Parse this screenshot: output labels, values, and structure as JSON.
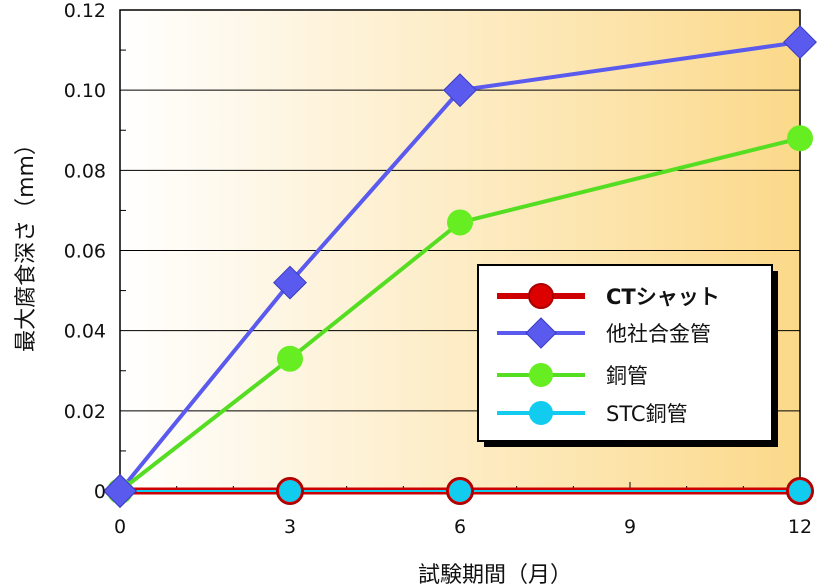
{
  "chart_data": {
    "type": "line",
    "xlabel": "試験期間（月）",
    "ylabel": "最大腐食深さ（mm）",
    "x": [
      0,
      3,
      6,
      12
    ],
    "xticks": [
      0,
      3,
      6,
      9,
      12
    ],
    "xlim": [
      0,
      12
    ],
    "yticks": [
      0,
      0.02,
      0.04,
      0.06,
      0.08,
      0.1,
      0.12
    ],
    "ytick_labels": [
      "0",
      "0.02",
      "0.04",
      "0.06",
      "0.08",
      "0.10",
      "0.12"
    ],
    "ylim": [
      0,
      0.12
    ],
    "grid": "horizontal",
    "legend_position": "center-right",
    "background": "gradient white to light orange",
    "series": [
      {
        "name": "CTシャット",
        "values": [
          0,
          0,
          0,
          0
        ],
        "color": "#cc0000",
        "marker": "circle",
        "marker_color": "#dd0000"
      },
      {
        "name": "他社合金管",
        "values": [
          0,
          0.052,
          0.1,
          0.112
        ],
        "color": "#5a5aee",
        "marker": "diamond",
        "marker_color": "#5a5aee"
      },
      {
        "name": "銅管",
        "values": [
          0,
          0.033,
          0.067,
          0.088
        ],
        "color": "#55dd22",
        "marker": "circle",
        "marker_color": "#66ee22"
      },
      {
        "name": "STC銅管",
        "values": [
          0,
          0,
          0,
          0
        ],
        "color": "#11ccee",
        "marker": "circle",
        "marker_color": "#11ccee"
      }
    ]
  }
}
